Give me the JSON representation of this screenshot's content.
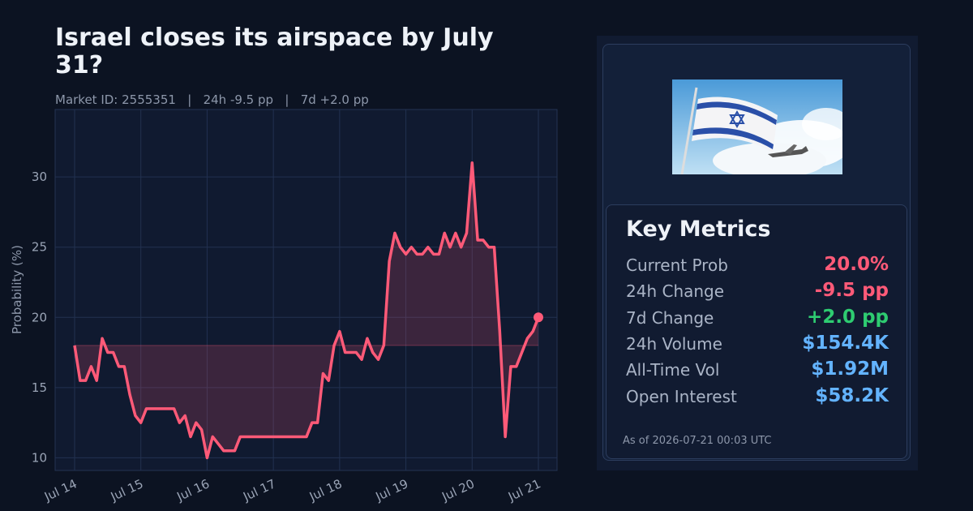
{
  "chart_data": {
    "type": "line",
    "title": "Israel closes its airspace by July 31?",
    "subtitle": "Market ID: 2555351   |   24h -9.5 pp   |   7d +2.0 pp",
    "y_label": "Probability (%)",
    "x_labels": [
      "Jul 14",
      "Jul 15",
      "Jul 16",
      "Jul 17",
      "Jul 18",
      "Jul 19",
      "Jul 20",
      "Jul 21"
    ],
    "values": [
      18,
      15.5,
      15.5,
      16.5,
      15.5,
      18.5,
      17.5,
      17.5,
      16.5,
      16.5,
      14.5,
      13,
      12.5,
      13.5,
      13.5,
      13.5,
      13.5,
      13.5,
      13.5,
      12.5,
      13,
      11.5,
      12.5,
      12,
      10,
      11.5,
      11,
      10.5,
      10.5,
      10.5,
      11.5,
      11.5,
      11.5,
      11.5,
      11.5,
      11.5,
      11.5,
      11.5,
      11.5,
      11.5,
      11.5,
      11.5,
      11.5,
      12.5,
      12.5,
      16,
      15.5,
      18,
      19,
      17.5,
      17.5,
      17.5,
      17,
      18.5,
      17.5,
      17,
      18,
      24,
      26,
      25,
      24.5,
      25,
      24.5,
      24.5,
      25,
      24.5,
      24.5,
      26,
      25,
      26,
      25,
      26,
      31,
      25.5,
      25.5,
      25,
      25,
      19,
      11.5,
      16.5,
      16.5,
      17.5,
      18.5,
      19,
      20
    ],
    "color": "#ff5a78",
    "ylim": [
      9.1,
      34.8
    ],
    "yticks": [
      10,
      15,
      20,
      25,
      30
    ],
    "grid": true
  },
  "card": {
    "title": "Key Metrics",
    "metrics": [
      {
        "label": "Current Prob",
        "value": "20.0%",
        "color": "#ff5a78"
      },
      {
        "label": "24h Change",
        "value": "-9.5 pp",
        "color": "#ff5a78"
      },
      {
        "label": "7d Change",
        "value": "+2.0 pp",
        "color": "#2ecc71"
      },
      {
        "label": "24h Volume",
        "value": "$154.4K",
        "color": "#63b3ff"
      },
      {
        "label": "All-Time Vol",
        "value": "$1.92M",
        "color": "#63b3ff"
      },
      {
        "label": "Open Interest",
        "value": "$58.2K",
        "color": "#63b3ff"
      }
    ],
    "footer": "As of 2026-07-21 00:03 UTC"
  }
}
